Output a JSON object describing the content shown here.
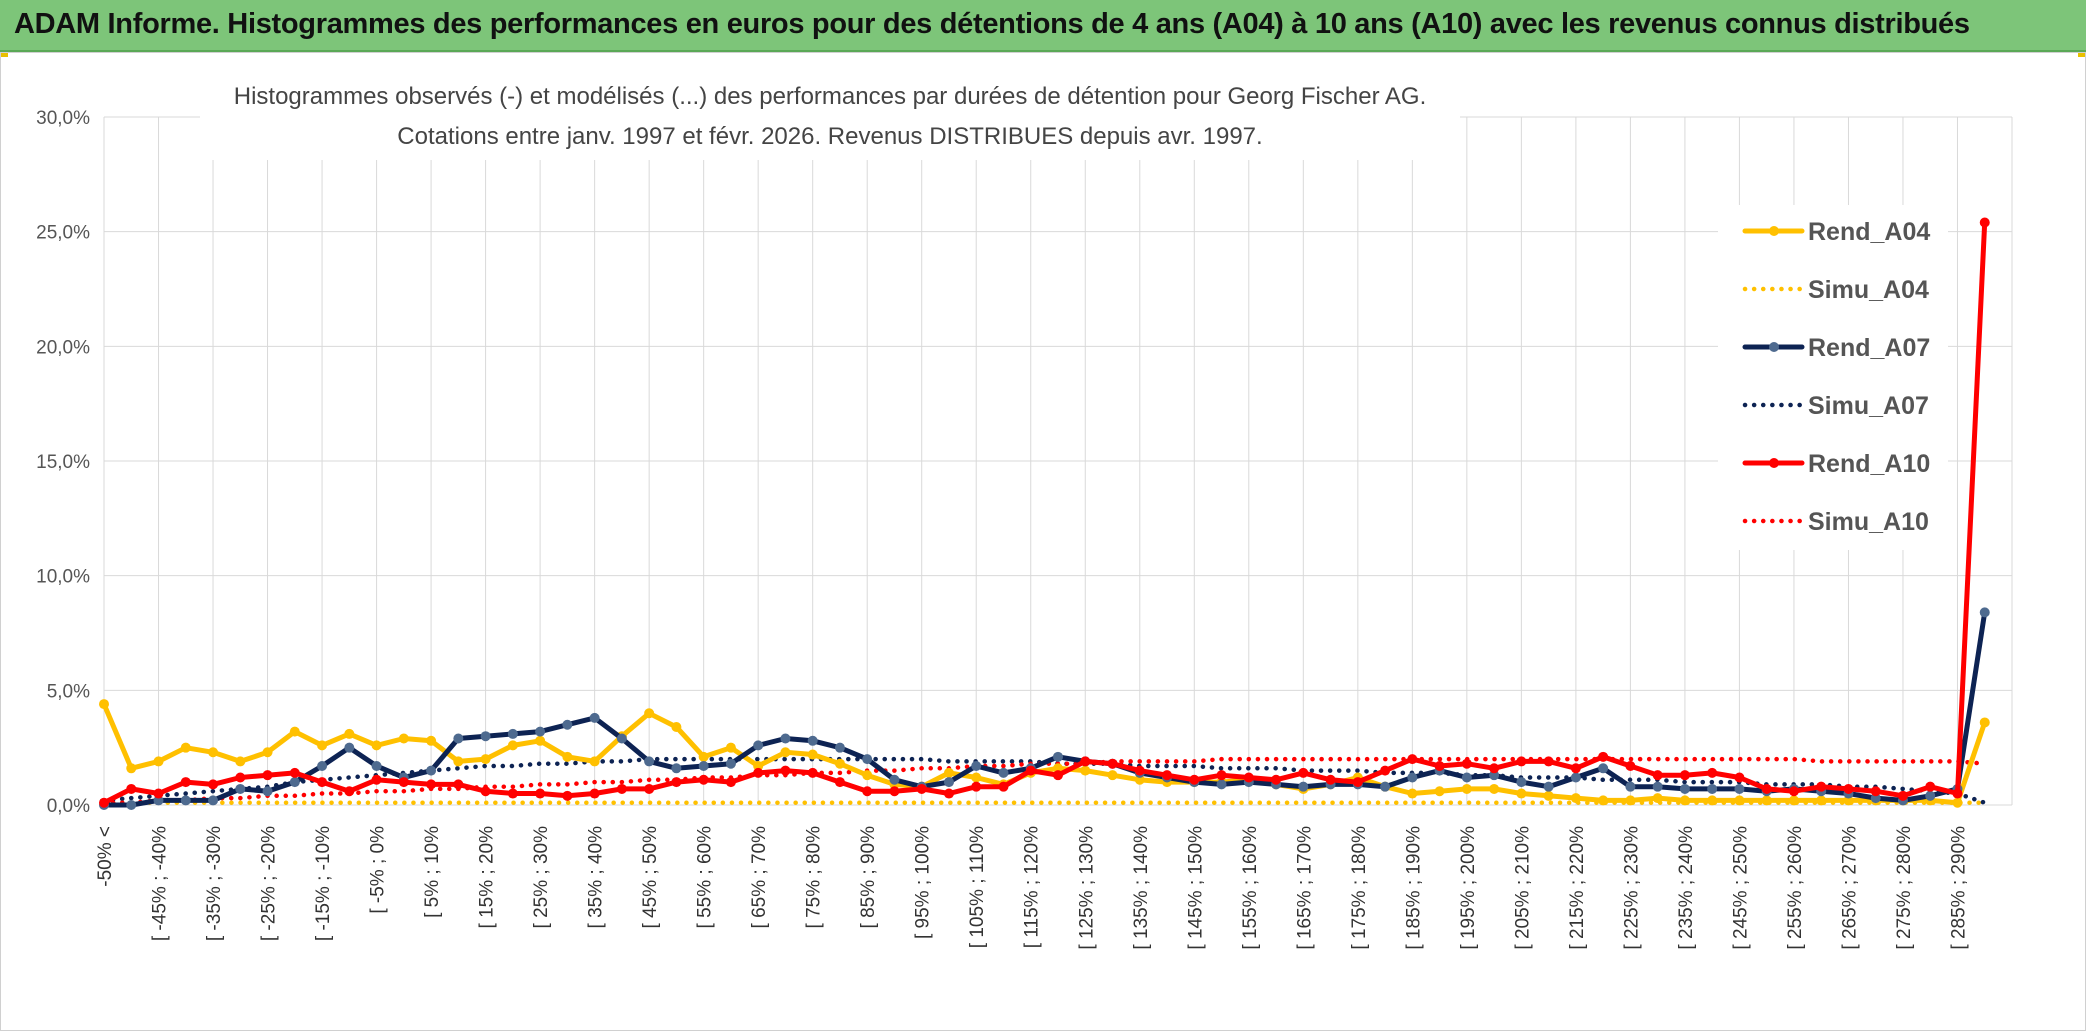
{
  "header": {
    "title": "ADAM Informe. Histogrammes des performances en euros pour des détentions de 4 ans (A04) à 10 ans (A10) avec les revenus connus distribués"
  },
  "colors": {
    "header_bg": "#7dc579",
    "a04": "#ffc000",
    "a07": "#0d2353",
    "a10": "#ff0000"
  },
  "chart_data": {
    "type": "line",
    "title": "Histogrammes observés (-) et modélisés (...) des performances par durées de détention pour Georg Fischer AG.",
    "subtitle": "Cotations entre janv. 1997 et févr. 2026. Revenus DISTRIBUES depuis avr. 1997.",
    "xlabel": "",
    "ylabel": "",
    "ylim": [
      0,
      30
    ],
    "y_ticks": [
      "0,0%",
      "5,0%",
      "10,0%",
      "15,0%",
      "20,0%",
      "25,0%",
      "30,0%"
    ],
    "grid": true,
    "legend_position": "right",
    "x_tick_labels": [
      "-50% <",
      "[ -45% ; -40%",
      "[ -35% ; -30%",
      "[ -25% ; -20%",
      "[ -15% ; -10%",
      "[ -5% ; 0%",
      "[ 5% ; 10%",
      "[ 15% ; 20%",
      "[ 25% ; 30%",
      "[ 35% ; 40%",
      "[ 45% ; 50%",
      "[ 55% ; 60%",
      "[ 65% ; 70%",
      "[ 75% ; 80%",
      "[ 85% ; 90%",
      "[ 95% ; 100%",
      "[ 105% ; 110%",
      "[ 115% ; 120%",
      "[ 125% ; 130%",
      "[ 135% ; 140%",
      "[ 145% ; 150%",
      "[ 155% ; 160%",
      "[ 165% ; 170%",
      "[ 175% ; 180%",
      "[ 185% ; 190%",
      "[ 195% ; 200%",
      "[ 205% ; 210%",
      "[ 215% ; 220%",
      "[ 225% ; 230%",
      "[ 235% ; 240%",
      "[ 245% ; 250%",
      "[ 255% ; 260%",
      "[ 265% ; 270%",
      "[ 275% ; 280%",
      "[ 285% ; 290%"
    ],
    "x_categories_count": 70,
    "series": [
      {
        "name": "Rend_A04",
        "style": "solid",
        "color": "#ffc000",
        "values": [
          4.4,
          1.6,
          1.9,
          2.5,
          2.3,
          1.9,
          2.3,
          3.2,
          2.6,
          3.1,
          2.6,
          2.9,
          2.8,
          1.9,
          2.0,
          2.6,
          2.8,
          2.1,
          1.9,
          3.0,
          4.0,
          3.4,
          2.1,
          2.5,
          1.7,
          2.3,
          2.2,
          1.8,
          1.3,
          0.9,
          0.8,
          1.4,
          1.2,
          0.9,
          1.4,
          1.6,
          1.5,
          1.3,
          1.1,
          1.0,
          1.0,
          1.0,
          1.1,
          0.9,
          0.7,
          0.9,
          1.2,
          0.8,
          0.5,
          0.6,
          0.7,
          0.7,
          0.5,
          0.4,
          0.3,
          0.2,
          0.2,
          0.3,
          0.2,
          0.2,
          0.2,
          0.2,
          0.2,
          0.2,
          0.2,
          0.2,
          0.2,
          0.2,
          0.1,
          3.6
        ]
      },
      {
        "name": "Simu_A04",
        "style": "dotted",
        "color": "#ffc000",
        "values": [
          0.1,
          0.1,
          0.1,
          0.1,
          0.1,
          0.1,
          0.1,
          0.1,
          0.1,
          0.1,
          0.1,
          0.1,
          0.1,
          0.1,
          0.1,
          0.1,
          0.1,
          0.1,
          0.1,
          0.1,
          0.1,
          0.1,
          0.1,
          0.1,
          0.1,
          0.1,
          0.1,
          0.1,
          0.1,
          0.1,
          0.1,
          0.1,
          0.1,
          0.1,
          0.1,
          0.1,
          0.1,
          0.1,
          0.1,
          0.1,
          0.1,
          0.1,
          0.1,
          0.1,
          0.1,
          0.1,
          0.1,
          0.1,
          0.1,
          0.1,
          0.1,
          0.1,
          0.1,
          0.1,
          0.1,
          0.1,
          0.1,
          0.1,
          0.1,
          0.1,
          0.1,
          0.1,
          0.1,
          0.1,
          0.1,
          0.1,
          0.1,
          0.1,
          0.1,
          0.1
        ]
      },
      {
        "name": "Rend_A07",
        "style": "solid",
        "color": "#0d2353",
        "values": [
          0.0,
          0.0,
          0.2,
          0.2,
          0.2,
          0.7,
          0.6,
          1.0,
          1.7,
          2.5,
          1.7,
          1.2,
          1.5,
          2.9,
          3.0,
          3.1,
          3.2,
          3.5,
          3.8,
          2.9,
          1.9,
          1.6,
          1.7,
          1.8,
          2.6,
          2.9,
          2.8,
          2.5,
          2.0,
          1.1,
          0.8,
          1.0,
          1.7,
          1.4,
          1.6,
          2.1,
          1.9,
          1.8,
          1.4,
          1.2,
          1.0,
          0.9,
          1.0,
          0.9,
          0.8,
          0.9,
          0.9,
          0.8,
          1.2,
          1.5,
          1.2,
          1.3,
          1.0,
          0.8,
          1.2,
          1.6,
          0.8,
          0.8,
          0.7,
          0.7,
          0.7,
          0.6,
          0.7,
          0.6,
          0.5,
          0.3,
          0.2,
          0.4,
          0.7,
          8.4
        ]
      },
      {
        "name": "Simu_A07",
        "style": "dotted",
        "color": "#0d2353",
        "values": [
          0.2,
          0.3,
          0.4,
          0.5,
          0.6,
          0.7,
          0.8,
          1.0,
          1.1,
          1.2,
          1.3,
          1.4,
          1.5,
          1.6,
          1.7,
          1.7,
          1.8,
          1.8,
          1.9,
          1.9,
          2.0,
          2.0,
          2.0,
          2.0,
          2.0,
          2.0,
          2.0,
          2.0,
          2.0,
          2.0,
          2.0,
          1.9,
          1.9,
          1.9,
          1.9,
          1.8,
          1.8,
          1.8,
          1.7,
          1.7,
          1.7,
          1.6,
          1.6,
          1.6,
          1.5,
          1.5,
          1.5,
          1.4,
          1.4,
          1.4,
          1.3,
          1.3,
          1.2,
          1.2,
          1.2,
          1.1,
          1.1,
          1.1,
          1.0,
          1.0,
          1.0,
          0.9,
          0.9,
          0.9,
          0.8,
          0.8,
          0.7,
          0.6,
          0.5,
          0.1
        ]
      },
      {
        "name": "Rend_A10",
        "style": "solid",
        "color": "#ff0000",
        "values": [
          0.1,
          0.7,
          0.5,
          1.0,
          0.9,
          1.2,
          1.3,
          1.4,
          1.0,
          0.6,
          1.1,
          1.0,
          0.9,
          0.9,
          0.6,
          0.5,
          0.5,
          0.4,
          0.5,
          0.7,
          0.7,
          1.0,
          1.1,
          1.0,
          1.4,
          1.5,
          1.4,
          1.0,
          0.6,
          0.6,
          0.7,
          0.5,
          0.8,
          0.8,
          1.5,
          1.3,
          1.9,
          1.8,
          1.5,
          1.3,
          1.1,
          1.3,
          1.2,
          1.1,
          1.4,
          1.1,
          1.0,
          1.5,
          2.0,
          1.7,
          1.8,
          1.6,
          1.9,
          1.9,
          1.6,
          2.1,
          1.7,
          1.3,
          1.3,
          1.4,
          1.2,
          0.7,
          0.6,
          0.8,
          0.7,
          0.6,
          0.4,
          0.8,
          0.5,
          25.4
        ]
      },
      {
        "name": "Simu_A10",
        "style": "dotted",
        "color": "#ff0000",
        "values": [
          0.1,
          0.1,
          0.2,
          0.2,
          0.3,
          0.3,
          0.4,
          0.4,
          0.5,
          0.5,
          0.6,
          0.6,
          0.7,
          0.7,
          0.8,
          0.8,
          0.9,
          0.9,
          1.0,
          1.0,
          1.1,
          1.1,
          1.2,
          1.2,
          1.3,
          1.3,
          1.4,
          1.4,
          1.5,
          1.5,
          1.6,
          1.6,
          1.7,
          1.7,
          1.8,
          1.8,
          1.8,
          1.9,
          1.9,
          1.9,
          1.9,
          2.0,
          2.0,
          2.0,
          2.0,
          2.0,
          2.0,
          2.0,
          2.0,
          2.0,
          2.0,
          2.0,
          2.0,
          2.0,
          2.0,
          2.0,
          2.0,
          2.0,
          2.0,
          2.0,
          2.0,
          2.0,
          2.0,
          1.9,
          1.9,
          1.9,
          1.9,
          1.9,
          1.9,
          1.8
        ]
      }
    ]
  }
}
